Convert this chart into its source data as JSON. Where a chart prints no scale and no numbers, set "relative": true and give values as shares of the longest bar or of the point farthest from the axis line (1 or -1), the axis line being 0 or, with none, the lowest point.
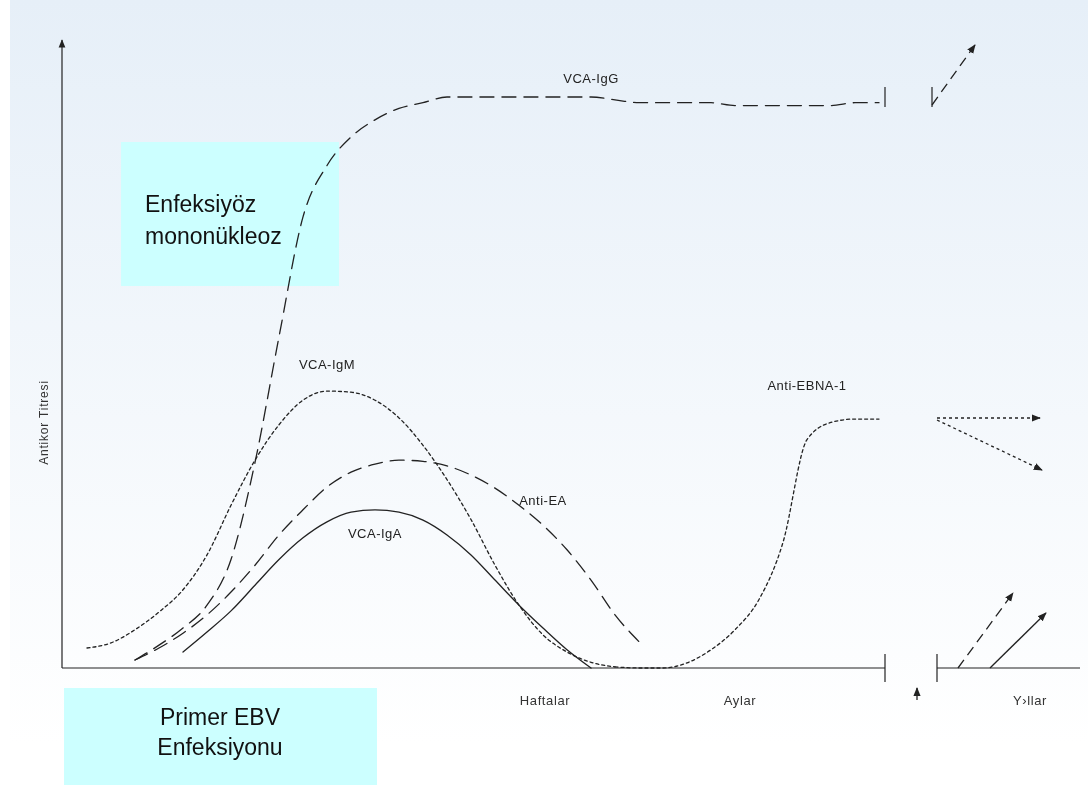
{
  "chart_data": {
    "type": "line",
    "relative": true,
    "ylabel": "Antikor Titresi",
    "categories": [
      null,
      null,
      null,
      null,
      null,
      null,
      null,
      null,
      null,
      null,
      null,
      null,
      null,
      null,
      null,
      null,
      null,
      null,
      null,
      null,
      null,
      null,
      null,
      null,
      null,
      null,
      null,
      null,
      null,
      null,
      null,
      null,
      null,
      null,
      null,
      null,
      null,
      null,
      null,
      null,
      null
    ],
    "series": [
      {
        "name": "VCA-IgG",
        "color": "#222222",
        "line_style": "dashed",
        "values": [
          null,
          null,
          0.014,
          0.04,
          0.07,
          0.11,
          0.19,
          0.36,
          0.58,
          0.79,
          0.88,
          0.93,
          0.96,
          0.98,
          0.99,
          1,
          1,
          1,
          1,
          1,
          1,
          1,
          0.995,
          0.99,
          0.99,
          0.99,
          0.99,
          0.985,
          0.985,
          0.985,
          0.985,
          0.985,
          0.99,
          0.99,
          null,
          null,
          null,
          null,
          null,
          null,
          null
        ]
      },
      {
        "name": "VCA-IgM",
        "color": "#222222",
        "line_style": "dotted",
        "values": [
          0.035,
          0.044,
          0.067,
          0.098,
          0.137,
          0.198,
          0.285,
          0.364,
          0.426,
          0.469,
          0.485,
          0.483,
          0.469,
          0.438,
          0.39,
          0.33,
          0.26,
          0.18,
          0.11,
          0.058,
          0.028,
          0.01,
          0.002,
          null,
          null,
          null,
          null,
          null,
          null,
          null,
          null,
          null,
          null,
          null,
          null,
          null,
          null,
          null,
          null,
          null,
          null
        ]
      },
      {
        "name": "Anti-EA",
        "color": "#222222",
        "line_style": "dashed",
        "values": [
          null,
          null,
          0.014,
          0.035,
          0.061,
          0.093,
          0.133,
          0.18,
          0.233,
          0.277,
          0.317,
          0.343,
          0.357,
          0.364,
          0.362,
          0.354,
          0.338,
          0.315,
          0.285,
          0.25,
          0.207,
          0.154,
          0.093,
          0.046,
          null,
          null,
          null,
          null,
          null,
          null,
          null,
          null,
          null,
          null,
          null,
          null,
          null,
          null,
          null,
          null,
          null
        ]
      },
      {
        "name": "VCA-IgA",
        "color": "#222222",
        "line_style": "solid",
        "values": [
          null,
          null,
          null,
          null,
          0.028,
          0.063,
          0.1,
          0.145,
          0.19,
          0.228,
          0.256,
          0.273,
          0.277,
          0.273,
          0.259,
          0.233,
          0.198,
          0.154,
          0.11,
          0.07,
          0.032,
          0,
          null,
          null,
          null,
          null,
          null,
          null,
          null,
          null,
          null,
          null,
          null,
          null,
          null,
          null,
          null,
          null,
          null,
          null,
          null
        ]
      },
      {
        "name": "Anti-EBNA-1",
        "color": "#222222",
        "line_style": "dotted",
        "values": [
          null,
          null,
          null,
          null,
          null,
          null,
          null,
          null,
          null,
          null,
          null,
          null,
          null,
          null,
          null,
          null,
          null,
          null,
          null,
          null,
          null,
          null,
          0.002,
          0,
          0,
          0.009,
          0.032,
          0.067,
          0.12,
          0.22,
          0.4,
          0.43,
          0.436,
          0.436,
          null,
          null,
          null,
          null,
          null,
          null,
          null
        ]
      }
    ],
    "annotations": [
      "Haftalar",
      "Aylar",
      "Y›llar",
      "Enfeksiyöz mononükleoz",
      "Primer EBV Enfeksiyonu"
    ]
  }
}
